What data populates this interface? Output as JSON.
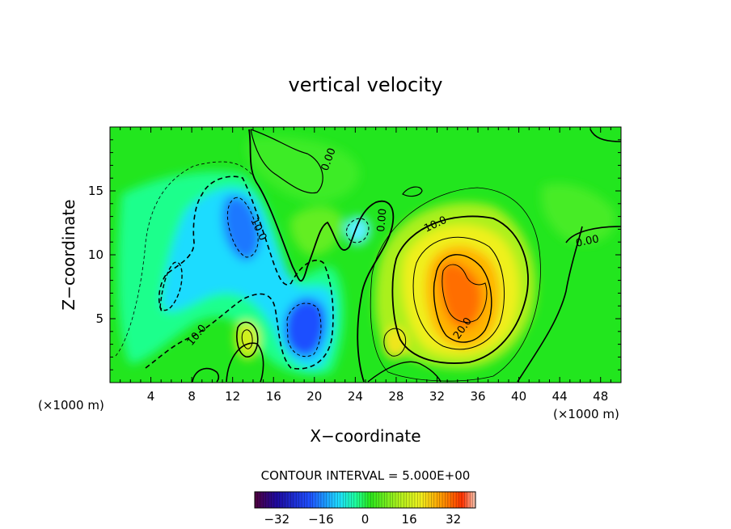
{
  "chart_data": {
    "type": "heatmap",
    "title": "vertical velocity",
    "xlabel": "X−coordinate",
    "ylabel": "Z−coordinate",
    "x_unit_label": "(×1000 m)",
    "x_unit_label_right": "(×1000 m)",
    "xlim": [
      0,
      50
    ],
    "ylim": [
      0,
      20
    ],
    "x_ticks": [
      "4",
      "8",
      "12",
      "16",
      "20",
      "24",
      "28",
      "32",
      "36",
      "40",
      "44",
      "48"
    ],
    "y_ticks": [
      "5",
      "10",
      "15"
    ],
    "contour_interval_text": "CONTOUR INTERVAL = 5.000E+00",
    "contour_labels": [
      "0.00",
      "0.00",
      "0.00",
      "10.0",
      "10.0",
      "10.0",
      "20.0"
    ],
    "colorbar": {
      "range": [
        -40,
        40
      ],
      "ticks": [
        "−32",
        "−16",
        "0",
        "16",
        "32"
      ]
    },
    "features": [
      {
        "kind": "max",
        "x": 34,
        "z": 7,
        "value": 30
      },
      {
        "kind": "max",
        "x": 28,
        "z": 3,
        "value": 15
      },
      {
        "kind": "max",
        "x": 13.5,
        "z": 3.5,
        "value": 12
      },
      {
        "kind": "min",
        "x": 18.5,
        "z": 4,
        "value": -28
      },
      {
        "kind": "min",
        "x": 13,
        "z": 12.5,
        "value": -22
      },
      {
        "kind": "min",
        "x": 8,
        "z": 7,
        "value": -10
      }
    ],
    "colors": {
      "background_field": "#22e61e",
      "positive_max": "#ff5a00",
      "negative_min": "#1414c8"
    }
  }
}
